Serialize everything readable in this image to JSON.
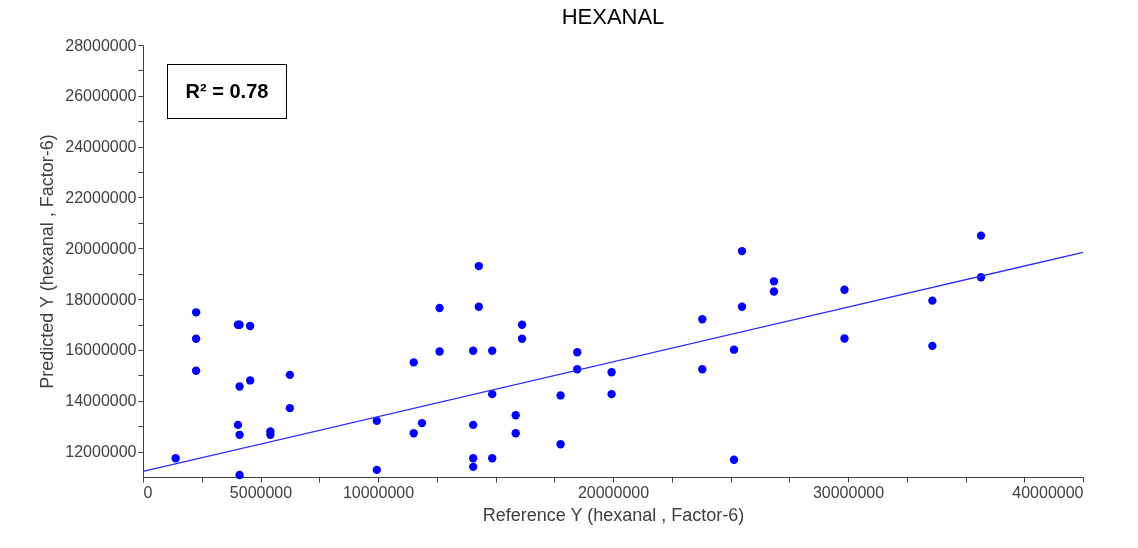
{
  "chart_data": {
    "type": "scatter",
    "title": "HEXANAL",
    "xlabel": "Reference Y (hexanal , Factor-6)",
    "ylabel": "Predicted Y (hexanal , Factor-6)",
    "xlim": [
      0,
      40000000
    ],
    "ylim": [
      11000000,
      28000000
    ],
    "xticks": [
      0,
      {
        "value": 2500000,
        "label": null
      },
      5000000,
      {
        "value": 7500000,
        "label": null
      },
      10000000,
      {
        "value": 12500000,
        "label": null
      },
      {
        "value": 15000000,
        "label": null
      },
      {
        "value": 17500000,
        "label": null
      },
      20000000,
      {
        "value": 22500000,
        "label": null
      },
      {
        "value": 25000000,
        "label": null
      },
      {
        "value": 27500000,
        "label": null
      },
      30000000,
      {
        "value": 32500000,
        "label": null
      },
      {
        "value": 35000000,
        "label": null
      },
      {
        "value": 37500000,
        "label": null
      },
      40000000
    ],
    "yticks": [
      12000000,
      {
        "value": 13000000,
        "label": null
      },
      14000000,
      {
        "value": 15000000,
        "label": null
      },
      16000000,
      {
        "value": 17000000,
        "label": null
      },
      18000000,
      {
        "value": 19000000,
        "label": null
      },
      20000000,
      {
        "value": 21000000,
        "label": null
      },
      22000000,
      {
        "value": 23000000,
        "label": null
      },
      24000000,
      {
        "value": 25000000,
        "label": null
      },
      26000000,
      {
        "value": 27000000,
        "label": null
      },
      28000000
    ],
    "grid": false,
    "annotations": [
      "R² = 0.78"
    ],
    "series": [
      {
        "marker": "circle",
        "color": "#0000ff",
        "x": [
          1390000,
          2260000,
          2260000,
          2260000,
          4040000,
          4110000,
          4560000,
          4110000,
          4560000,
          4040000,
          4110000,
          4110000,
          5420000,
          5420000,
          6250000,
          6250000,
          9950000,
          9950000,
          11520000,
          11520000,
          11870000,
          12620000,
          12620000,
          14290000,
          14290000,
          14050000,
          14860000,
          16130000,
          16130000,
          18480000,
          18480000,
          19940000,
          19940000,
          14860000,
          17770000,
          17770000,
          15860000,
          15860000,
          14050000,
          14050000,
          14050000,
          14860000,
          23800000,
          23800000,
          25490000,
          25490000,
          25150000,
          25150000,
          26850000,
          26850000,
          29850000,
          29850000,
          33590000,
          33590000,
          35660000,
          35660000
        ],
        "values": [
          11740000,
          17480000,
          16440000,
          15180000,
          16990000,
          16990000,
          16940000,
          14560000,
          14800000,
          13050000,
          12660000,
          11080000,
          12790000,
          12660000,
          15020000,
          13710000,
          13210000,
          11280000,
          15510000,
          12720000,
          13120000,
          17650000,
          15940000,
          19300000,
          17700000,
          15970000,
          15970000,
          16990000,
          16440000,
          15910000,
          15240000,
          15120000,
          14260000,
          14260000,
          14210000,
          12290000,
          13430000,
          12720000,
          13050000,
          11740000,
          11400000,
          11740000,
          17210000,
          15240000,
          19890000,
          17700000,
          16010000,
          11680000,
          18700000,
          18300000,
          18370000,
          16450000,
          17940000,
          16160000,
          20500000,
          18860000
        ]
      },
      {
        "type": "line",
        "color": "#2a2aff",
        "line_style": "solid",
        "x": [
          0,
          40000000
        ],
        "values": [
          11220000,
          19840000
        ]
      }
    ]
  }
}
